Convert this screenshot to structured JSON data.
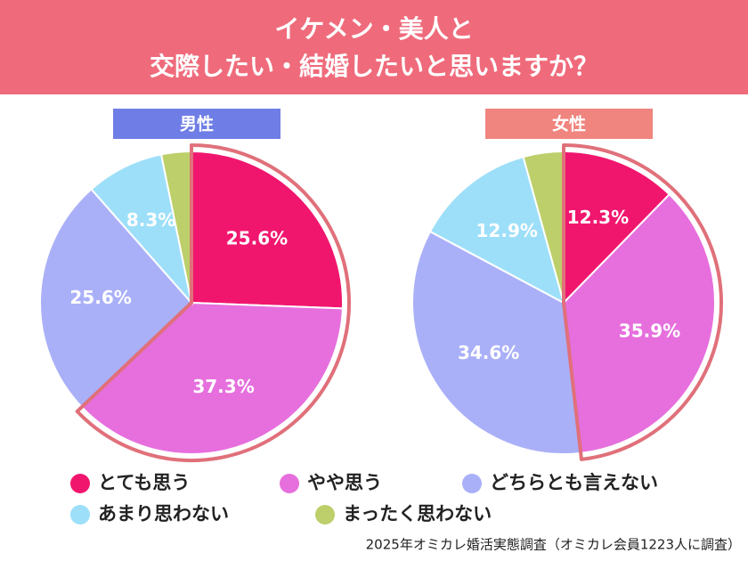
{
  "title": [
    "イケメン・美人と",
    "交際したい・結婚したいと思いますか？"
  ],
  "source": "2025年オミカレ婚活実態調査（オミカレ会員1223人に調査）",
  "chart_data": [
    {
      "type": "pie",
      "title": "男性",
      "title_color": "#6f7ee6",
      "categories": [
        "とても思う",
        "やや思う",
        "どちらとも言えない",
        "あまり思わない",
        "まったく思わない"
      ],
      "colors": [
        "#f0166e",
        "#e66fdd",
        "#aab0f8",
        "#9ddff9",
        "#bccf6a"
      ],
      "values": [
        25.6,
        37.3,
        25.6,
        8.3,
        3.2
      ],
      "value_labels": [
        "25.6%",
        "37.3%",
        "25.6%",
        "8.3%",
        null
      ]
    },
    {
      "type": "pie",
      "title": "女性",
      "title_color": "#f0857f",
      "values": [
        12.3,
        35.9,
        34.6,
        12.9,
        4.3
      ],
      "value_labels": [
        "12.3%",
        "35.9%",
        "34.6%",
        "12.9%",
        null
      ]
    }
  ]
}
